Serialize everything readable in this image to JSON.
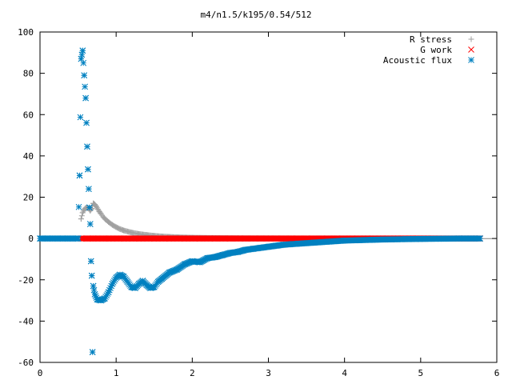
{
  "chart_data": {
    "type": "scatter",
    "title": "m4/n1.5/k195/0.54/512",
    "xlabel": "",
    "ylabel": "",
    "xlim": [
      0,
      6
    ],
    "ylim": [
      -60,
      100
    ],
    "x_ticks": [
      0,
      1,
      2,
      3,
      4,
      5,
      6
    ],
    "y_ticks": [
      -60,
      -40,
      -20,
      0,
      20,
      40,
      60,
      80,
      100
    ],
    "grid": false,
    "legend_position": "top-right",
    "series": [
      {
        "name": "R stress",
        "marker": "plus",
        "color": "#a0a0a0",
        "points": [
          [
            0.54,
            9.5
          ],
          [
            0.56,
            12.5
          ],
          [
            0.58,
            14.0
          ],
          [
            0.6,
            14.8
          ],
          [
            0.62,
            15.0
          ],
          [
            0.64,
            14.5
          ],
          [
            0.66,
            13.5
          ],
          [
            0.68,
            14.5
          ],
          [
            0.7,
            17.0
          ],
          [
            0.72,
            16.5
          ],
          [
            0.74,
            15.5
          ],
          [
            0.76,
            14.2
          ],
          [
            0.78,
            13.0
          ],
          [
            0.8,
            12.0
          ],
          [
            0.83,
            10.5
          ],
          [
            0.86,
            9.3
          ],
          [
            0.9,
            8.0
          ],
          [
            0.95,
            6.6
          ],
          [
            1.0,
            5.5
          ],
          [
            1.05,
            4.6
          ],
          [
            1.1,
            3.9
          ],
          [
            1.2,
            2.9
          ],
          [
            1.3,
            2.2
          ],
          [
            1.4,
            1.7
          ],
          [
            1.5,
            1.3
          ],
          [
            1.6,
            1.0
          ],
          [
            1.7,
            0.8
          ],
          [
            1.8,
            0.6
          ],
          [
            2.0,
            0.4
          ],
          [
            2.3,
            0.25
          ],
          [
            2.6,
            0.15
          ],
          [
            3.0,
            0.1
          ],
          [
            3.5,
            0.05
          ],
          [
            4.0,
            0.03
          ],
          [
            4.5,
            0.02
          ],
          [
            5.0,
            0.01
          ],
          [
            5.5,
            0.0
          ],
          [
            5.78,
            0.0
          ]
        ]
      },
      {
        "name": "G work",
        "marker": "cross",
        "color": "#ff0000",
        "points": [
          [
            0.54,
            0.0
          ],
          [
            0.7,
            0.0
          ],
          [
            0.9,
            0.0
          ],
          [
            1.1,
            0.0
          ],
          [
            1.3,
            0.0
          ],
          [
            1.5,
            0.0
          ],
          [
            1.7,
            0.0
          ],
          [
            1.9,
            0.0
          ],
          [
            2.1,
            0.0
          ],
          [
            2.3,
            0.0
          ],
          [
            2.5,
            0.0
          ],
          [
            2.7,
            0.0
          ],
          [
            2.9,
            0.0
          ],
          [
            3.1,
            0.0
          ],
          [
            3.3,
            0.0
          ],
          [
            3.5,
            0.0
          ],
          [
            3.7,
            0.0
          ],
          [
            3.9,
            0.0
          ],
          [
            4.1,
            0.0
          ],
          [
            4.3,
            0.0
          ],
          [
            4.5,
            0.0
          ],
          [
            4.7,
            0.0
          ],
          [
            4.9,
            0.0
          ],
          [
            5.1,
            0.0
          ],
          [
            5.3,
            0.0
          ],
          [
            5.5,
            0.0
          ],
          [
            5.78,
            0.0
          ]
        ]
      },
      {
        "name": "Acoustic flux",
        "marker": "star",
        "color": "#0080c0",
        "points": [
          [
            0.0,
            0.0
          ],
          [
            0.1,
            0.0
          ],
          [
            0.2,
            0.0
          ],
          [
            0.3,
            0.0
          ],
          [
            0.4,
            0.0
          ],
          [
            0.5,
            0.0
          ],
          [
            0.52,
            30.5
          ],
          [
            0.54,
            87.0
          ],
          [
            0.56,
            91.0
          ],
          [
            0.58,
            79.0
          ],
          [
            0.6,
            68.0
          ],
          [
            0.61,
            56.0
          ],
          [
            0.62,
            44.5
          ],
          [
            0.63,
            33.5
          ],
          [
            0.64,
            24.0
          ],
          [
            0.65,
            15.0
          ],
          [
            0.66,
            7.0
          ],
          [
            0.67,
            -11.0
          ],
          [
            0.68,
            -18.0
          ],
          [
            0.69,
            -55.0
          ],
          [
            0.7,
            -23.0
          ],
          [
            0.72,
            -27.0
          ],
          [
            0.75,
            -29.5
          ],
          [
            0.8,
            -30.0
          ],
          [
            0.85,
            -29.0
          ],
          [
            0.9,
            -26.0
          ],
          [
            0.95,
            -22.0
          ],
          [
            1.0,
            -19.0
          ],
          [
            1.05,
            -17.5
          ],
          [
            1.1,
            -18.5
          ],
          [
            1.15,
            -21.0
          ],
          [
            1.2,
            -23.5
          ],
          [
            1.25,
            -24.0
          ],
          [
            1.3,
            -22.0
          ],
          [
            1.35,
            -20.5
          ],
          [
            1.4,
            -22.5
          ],
          [
            1.45,
            -24.0
          ],
          [
            1.5,
            -23.5
          ],
          [
            1.55,
            -21.0
          ],
          [
            1.6,
            -19.5
          ],
          [
            1.7,
            -16.5
          ],
          [
            1.8,
            -15.0
          ],
          [
            1.9,
            -12.5
          ],
          [
            2.0,
            -11.0
          ],
          [
            2.1,
            -11.5
          ],
          [
            2.2,
            -9.5
          ],
          [
            2.3,
            -9.0
          ],
          [
            2.4,
            -8.0
          ],
          [
            2.5,
            -7.0
          ],
          [
            2.6,
            -6.5
          ],
          [
            2.7,
            -5.5
          ],
          [
            2.8,
            -5.0
          ],
          [
            2.9,
            -4.5
          ],
          [
            3.0,
            -4.0
          ],
          [
            3.1,
            -3.5
          ],
          [
            3.2,
            -3.0
          ],
          [
            3.4,
            -2.5
          ],
          [
            3.6,
            -2.0
          ],
          [
            3.8,
            -1.5
          ],
          [
            4.0,
            -1.0
          ],
          [
            4.2,
            -0.8
          ],
          [
            4.5,
            -0.5
          ],
          [
            4.8,
            -0.3
          ],
          [
            5.0,
            -0.2
          ],
          [
            5.3,
            -0.1
          ],
          [
            5.5,
            0.0
          ],
          [
            5.78,
            0.0
          ]
        ]
      }
    ]
  }
}
